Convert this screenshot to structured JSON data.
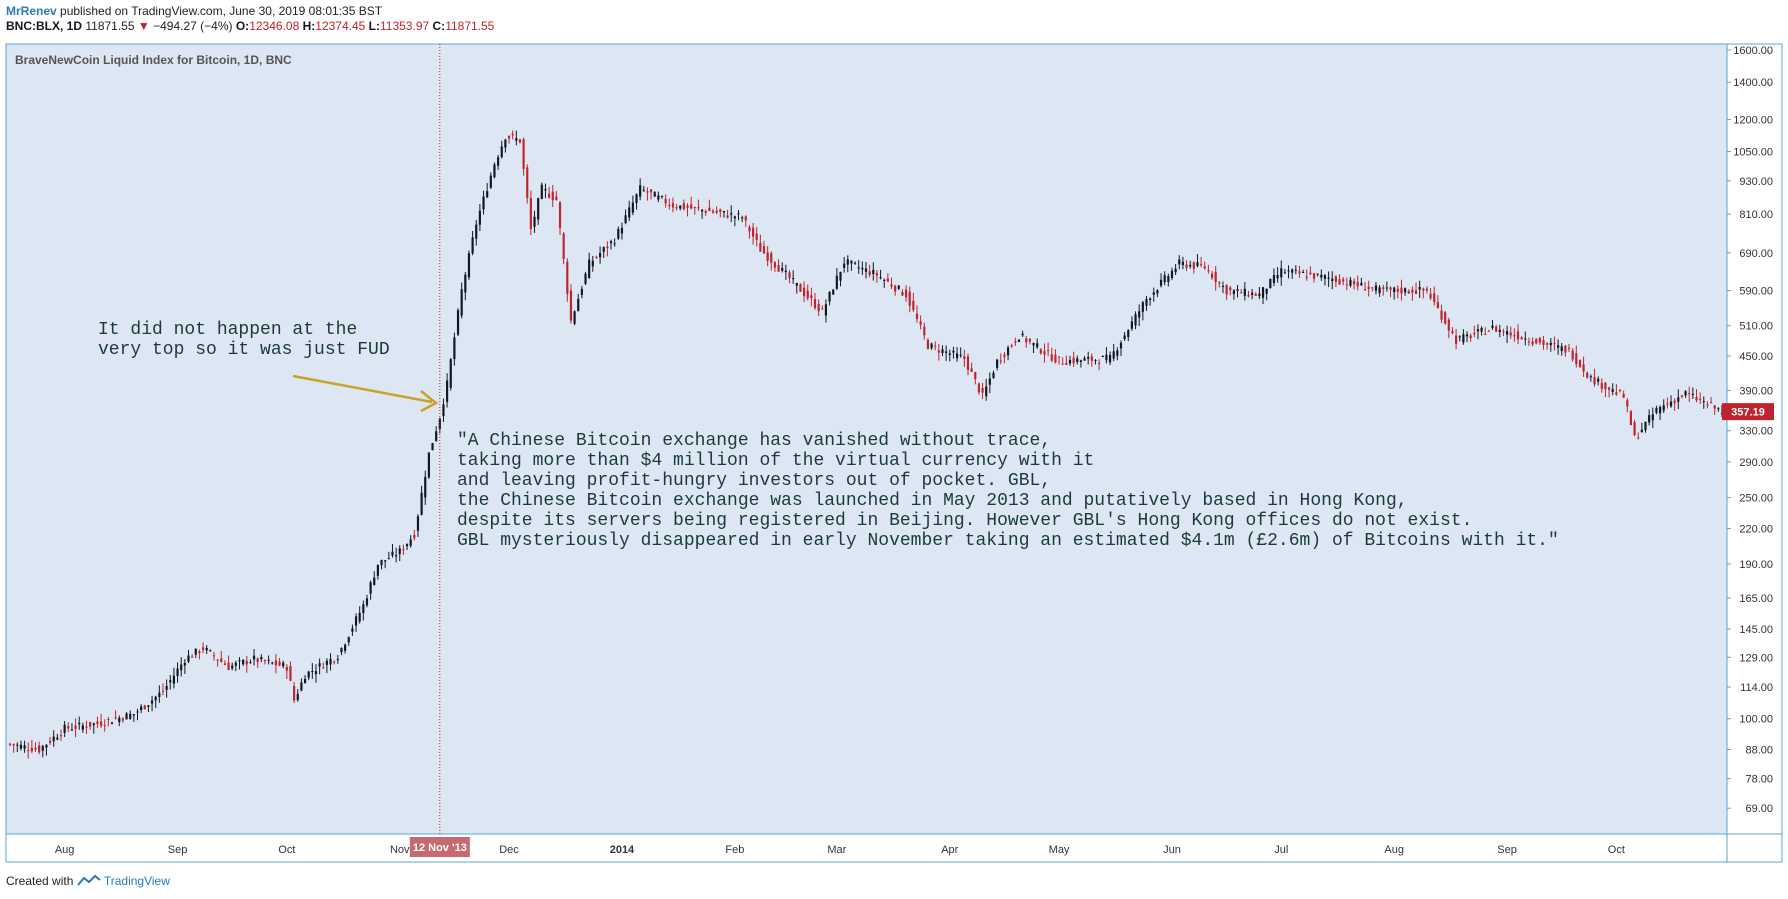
{
  "header": {
    "author": "MrRenev",
    "published_text": "published on TradingView.com, June 30, 2019 08:01:35 BST",
    "symbol": "BNC:BLX, 1D",
    "last": "11871.55",
    "change_arrow": "▼",
    "change": "−494.27 (−4%)",
    "open_label": "O:",
    "open_value": "12346.08",
    "high_label": "H:",
    "high_value": "12374.45",
    "low_label": "L:",
    "low_value": "11353.97",
    "close_label": "C:",
    "close_value": "11871.55"
  },
  "footer": {
    "created_with": "Created with",
    "brand": "TradingView"
  },
  "colors": {
    "background": "#dce7f3",
    "up_candle": "#131722",
    "down_candle": "#c2222b",
    "arrow": "#c9a227",
    "crosshair": "#c2222b",
    "axis_border": "#5aa4d8",
    "price_badge": "#c2222b",
    "date_badge": "#c66970"
  },
  "chart_data": {
    "type": "candlestick",
    "title": "BraveNewCoin Liquid Index for Bitcoin, 1D, BNC",
    "scale": "log",
    "ylim": [
      62,
      1640
    ],
    "x_range": [
      "2013-07-17",
      "2014-10-30"
    ],
    "y_ticks": [
      "1600.00",
      "1400.00",
      "1200.00",
      "1050.00",
      "930.00",
      "810.00",
      "690.00",
      "590.00",
      "510.00",
      "450.00",
      "390.00",
      "330.00",
      "290.00",
      "250.00",
      "220.00",
      "190.00",
      "165.00",
      "145.00",
      "129.00",
      "114.00",
      "100.00",
      "88.00",
      "78.00",
      "69.00"
    ],
    "x_ticks": [
      {
        "label": "Aug",
        "date": "2013-08-01"
      },
      {
        "label": "Sep",
        "date": "2013-09-01"
      },
      {
        "label": "Oct",
        "date": "2013-10-01"
      },
      {
        "label": "Nov",
        "date": "2013-11-01"
      },
      {
        "label": "Dec",
        "date": "2013-12-01"
      },
      {
        "label": "2014",
        "date": "2014-01-01"
      },
      {
        "label": "Feb",
        "date": "2014-02-01"
      },
      {
        "label": "Mar",
        "date": "2014-03-01"
      },
      {
        "label": "Apr",
        "date": "2014-04-01"
      },
      {
        "label": "May",
        "date": "2014-05-01"
      },
      {
        "label": "Jun",
        "date": "2014-06-01"
      },
      {
        "label": "Jul",
        "date": "2014-07-01"
      },
      {
        "label": "Aug",
        "date": "2014-08-01"
      },
      {
        "label": "Sep",
        "date": "2014-09-01"
      },
      {
        "label": "Oct",
        "date": "2014-10-01"
      }
    ],
    "price_path": [
      {
        "date": "2013-07-17",
        "close": 90
      },
      {
        "date": "2013-07-25",
        "close": 88
      },
      {
        "date": "2013-08-01",
        "close": 96
      },
      {
        "date": "2013-08-10",
        "close": 98
      },
      {
        "date": "2013-08-20",
        "close": 102
      },
      {
        "date": "2013-08-28",
        "close": 112
      },
      {
        "date": "2013-09-03",
        "close": 128
      },
      {
        "date": "2013-09-08",
        "close": 134
      },
      {
        "date": "2013-09-15",
        "close": 124
      },
      {
        "date": "2013-09-22",
        "close": 128
      },
      {
        "date": "2013-10-01",
        "close": 124
      },
      {
        "date": "2013-10-03",
        "close": 108
      },
      {
        "date": "2013-10-06",
        "close": 120
      },
      {
        "date": "2013-10-15",
        "close": 130
      },
      {
        "date": "2013-10-22",
        "close": 160
      },
      {
        "date": "2013-10-26",
        "close": 190
      },
      {
        "date": "2013-11-01",
        "close": 200
      },
      {
        "date": "2013-11-05",
        "close": 215
      },
      {
        "date": "2013-11-09",
        "close": 300
      },
      {
        "date": "2013-11-12",
        "close": 350
      },
      {
        "date": "2013-11-14",
        "close": 400
      },
      {
        "date": "2013-11-18",
        "close": 590
      },
      {
        "date": "2013-11-22",
        "close": 780
      },
      {
        "date": "2013-11-27",
        "close": 1000
      },
      {
        "date": "2013-11-30",
        "close": 1120
      },
      {
        "date": "2013-12-04",
        "close": 1100
      },
      {
        "date": "2013-12-07",
        "close": 760
      },
      {
        "date": "2013-12-10",
        "close": 900
      },
      {
        "date": "2013-12-14",
        "close": 860
      },
      {
        "date": "2013-12-18",
        "close": 520
      },
      {
        "date": "2013-12-23",
        "close": 660
      },
      {
        "date": "2013-12-30",
        "close": 730
      },
      {
        "date": "2014-01-06",
        "close": 900
      },
      {
        "date": "2014-01-15",
        "close": 840
      },
      {
        "date": "2014-01-25",
        "close": 820
      },
      {
        "date": "2014-02-03",
        "close": 800
      },
      {
        "date": "2014-02-08",
        "close": 700
      },
      {
        "date": "2014-02-15",
        "close": 630
      },
      {
        "date": "2014-02-25",
        "close": 540
      },
      {
        "date": "2014-03-03",
        "close": 665
      },
      {
        "date": "2014-03-12",
        "close": 630
      },
      {
        "date": "2014-03-20",
        "close": 580
      },
      {
        "date": "2014-03-26",
        "close": 470
      },
      {
        "date": "2014-04-05",
        "close": 445
      },
      {
        "date": "2014-04-10",
        "close": 380
      },
      {
        "date": "2014-04-14",
        "close": 440
      },
      {
        "date": "2014-04-20",
        "close": 490
      },
      {
        "date": "2014-05-01",
        "close": 440
      },
      {
        "date": "2014-05-15",
        "close": 445
      },
      {
        "date": "2014-05-25",
        "close": 570
      },
      {
        "date": "2014-06-03",
        "close": 660
      },
      {
        "date": "2014-06-10",
        "close": 650
      },
      {
        "date": "2014-06-16",
        "close": 590
      },
      {
        "date": "2014-06-25",
        "close": 580
      },
      {
        "date": "2014-07-01",
        "close": 640
      },
      {
        "date": "2014-07-15",
        "close": 620
      },
      {
        "date": "2014-07-28",
        "close": 590
      },
      {
        "date": "2014-08-10",
        "close": 590
      },
      {
        "date": "2014-08-18",
        "close": 480
      },
      {
        "date": "2014-08-28",
        "close": 505
      },
      {
        "date": "2014-09-08",
        "close": 480
      },
      {
        "date": "2014-09-18",
        "close": 460
      },
      {
        "date": "2014-09-24",
        "close": 410
      },
      {
        "date": "2014-10-03",
        "close": 380
      },
      {
        "date": "2014-10-06",
        "close": 320
      },
      {
        "date": "2014-10-12",
        "close": 360
      },
      {
        "date": "2014-10-20",
        "close": 385
      },
      {
        "date": "2014-10-30",
        "close": 357.19
      }
    ],
    "last_price_label": "357.19",
    "crosshair": {
      "date": "2013-11-12",
      "label": "12 Nov '13"
    },
    "annotations": [
      {
        "text": "It did not happen at the\nvery top so it was just FUD"
      },
      {
        "text": "\"A Chinese Bitcoin exchange has vanished without trace,\ntaking more than $4 million of the virtual currency with it\nand leaving profit-hungry investors out of pocket. GBL,\nthe Chinese Bitcoin exchange was launched in May 2013 and putatively based in Hong Kong,\ndespite its servers being registered in Beijing. However GBL's Hong Kong offices do not exist.\nGBL mysteriously disappeared in early November taking an estimated $4.1m (£2.6m) of Bitcoins with it.\""
      }
    ]
  }
}
